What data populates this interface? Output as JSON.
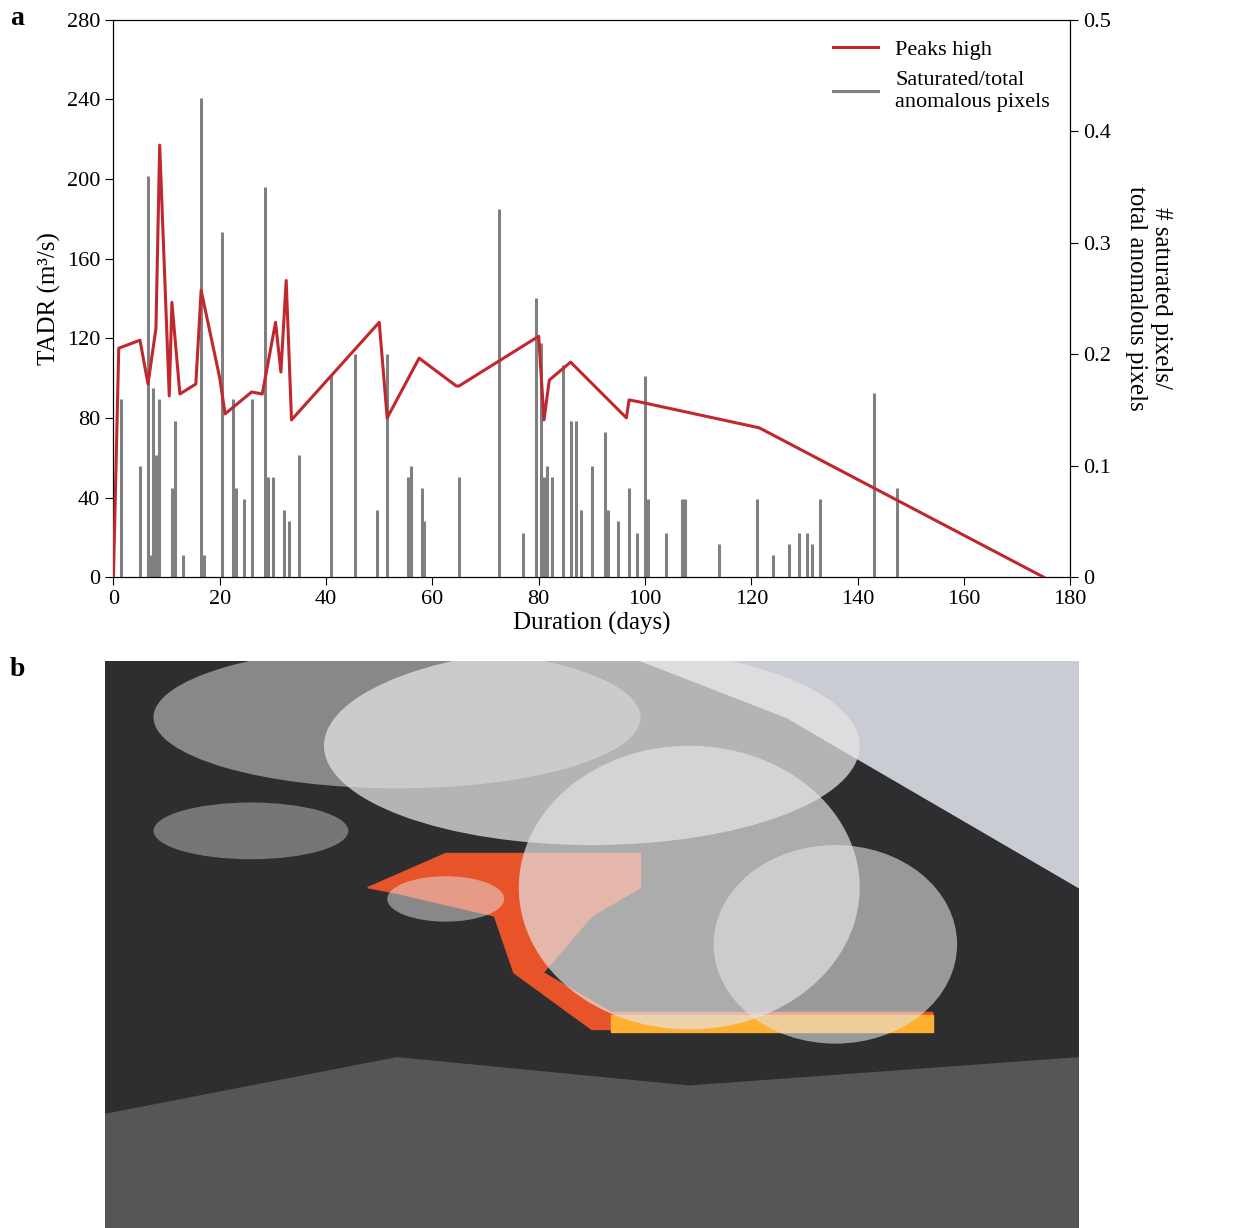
{
  "chart_data": {
    "type": "line",
    "panel_label": "a",
    "x_label": "Duration (days)",
    "y_label": "TADR (m³/s)",
    "y2_label": "# saturated pixels/\ntotal anomalous pixels",
    "xlim": [
      0,
      180
    ],
    "xticks": [
      0,
      20,
      40,
      60,
      80,
      100,
      120,
      140,
      160,
      180
    ],
    "ylim": [
      0,
      280
    ],
    "yticks": [
      0,
      40,
      80,
      120,
      160,
      200,
      240,
      280
    ],
    "y2lim": [
      0,
      0.5
    ],
    "y2ticks": [
      {
        "value": 0,
        "label": "0"
      },
      0.1,
      0.2,
      0.3,
      0.4,
      0.5
    ],
    "legend": "upper right",
    "series": [
      {
        "name": "Peaks high",
        "type": "line",
        "color": "#c0282d",
        "x": [
          0,
          1,
          5,
          6.5,
          8,
          8.7,
          10.5,
          11,
          12.5,
          15.5,
          16.5,
          20,
          21,
          26,
          28,
          30.5,
          31.5,
          32.5,
          33.5,
          50,
          51.5,
          57.5,
          64.5,
          65,
          80,
          81,
          82,
          86,
          96.5,
          97,
          99,
          121.5,
          175
        ],
        "values": [
          0,
          115,
          119,
          97,
          125,
          217,
          91,
          138,
          92,
          97,
          144,
          100,
          82,
          93,
          92,
          128,
          103,
          149,
          79,
          128,
          80,
          110,
          96,
          96,
          121,
          79,
          99,
          108,
          80,
          89,
          88,
          75,
          0
        ]
      },
      {
        "name": "Saturated/total\nanomalous pixels",
        "type": "bar",
        "axis": "y2",
        "color": "#808080",
        "x": [
          1.5,
          5,
          6.5,
          7,
          7.5,
          8,
          8.5,
          11,
          11.5,
          13,
          16.5,
          17,
          20.5,
          22.5,
          23,
          24.5,
          26,
          28.5,
          29,
          30,
          32,
          33,
          35,
          41,
          45.5,
          49.5,
          51.5,
          55.5,
          56,
          58,
          58.5,
          65,
          72.5,
          77,
          79.5,
          80.5,
          81,
          81.5,
          82.5,
          84.5,
          86,
          87,
          88,
          90,
          92.5,
          93,
          95,
          97,
          98.5,
          100,
          100.5,
          104,
          107,
          107.5,
          114,
          121,
          124,
          127,
          129,
          130.5,
          131.5,
          133,
          143,
          147.5
        ],
        "values": [
          0.16,
          0.1,
          0.36,
          0.02,
          0.17,
          0.11,
          0.16,
          0.08,
          0.14,
          0.02,
          0.43,
          0.02,
          0.31,
          0.16,
          0.08,
          0.07,
          0.16,
          0.35,
          0.09,
          0.09,
          0.06,
          0.05,
          0.11,
          0.18,
          0.2,
          0.06,
          0.2,
          0.09,
          0.1,
          0.08,
          0.05,
          0.09,
          0.33,
          0.04,
          0.25,
          0.21,
          0.09,
          0.1,
          0.09,
          0.19,
          0.14,
          0.14,
          0.06,
          0.1,
          0.13,
          0.06,
          0.05,
          0.08,
          0.04,
          0.18,
          0.07,
          0.04,
          0.07,
          0.07,
          0.03,
          0.07,
          0.02,
          0.03,
          0.04,
          0.04,
          0.03,
          0.07,
          0.165,
          0.08
        ]
      }
    ]
  },
  "image": {
    "panel_label": "b"
  }
}
